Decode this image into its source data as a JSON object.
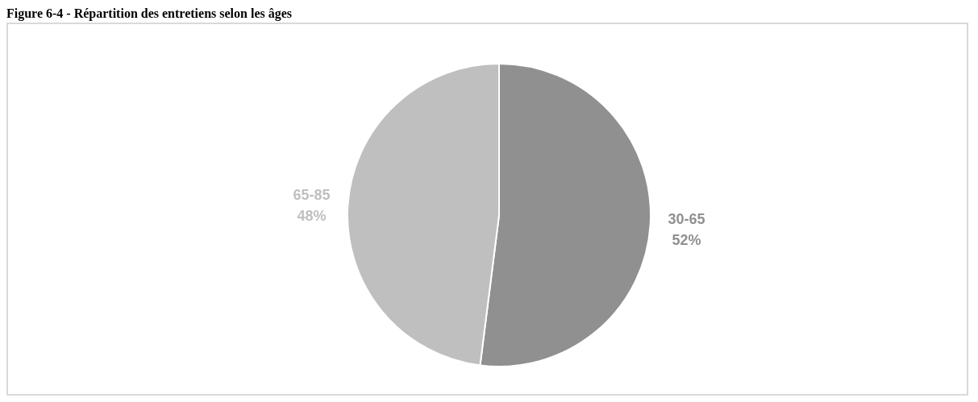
{
  "chart_data": {
    "type": "pie",
    "title": "Figure 6-4 - Répartition des entretiens selon les âges",
    "categories": [
      "30-65",
      "65-85"
    ],
    "values": [
      52,
      48
    ],
    "value_labels": [
      "52%",
      "48%"
    ],
    "colors": [
      "#909090",
      "#bfbfbf"
    ],
    "legend": false
  }
}
